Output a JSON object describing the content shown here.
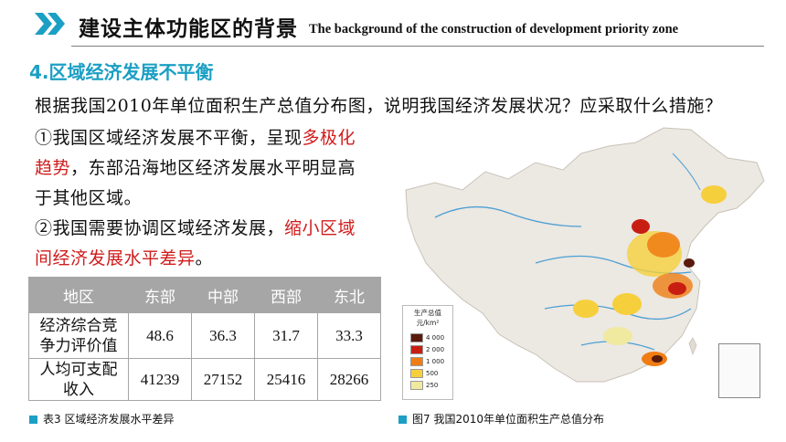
{
  "header": {
    "title_cn": "建设主体功能区的背景",
    "title_en": "The background of the construction of development priority zone"
  },
  "section_title": "4.区域经济发展不平衡",
  "question": "根据我国2010年单位面积生产总值分布图，说明我国经济发展状况？应采取什么措施？",
  "answer1": {
    "line1_pre": "①我国区域经济发展不平衡，呈现",
    "line1_red": "多极化",
    "line2_red": "趋势",
    "line2_post": "，东部沿海地区经济发展水平明显高",
    "line3": "于其他区域。"
  },
  "answer2": {
    "line1_pre": "②我国需要协调区域经济发展，",
    "line1_red": "缩小区域",
    "line2_red": "间经济发展水平差异",
    "line2_post": "。"
  },
  "table": {
    "headers": [
      "地区",
      "东部",
      "中部",
      "西部",
      "东北"
    ],
    "rows": [
      {
        "label_l1": "经济综合竞",
        "label_l2": "争力评价值",
        "values": [
          "48.6",
          "36.3",
          "31.7",
          "33.3"
        ]
      },
      {
        "label_l1": "人均可支配",
        "label_l2": "收入",
        "values": [
          "41239",
          "27152",
          "25416",
          "28266"
        ]
      }
    ]
  },
  "captions": {
    "table": "表3 区域经济发展水平差异",
    "map": "图7 我国2010年单位面积生产总值分布"
  },
  "legend": {
    "title": "生产总值",
    "unit": "元/km²",
    "items": [
      {
        "label": "4 000",
        "color": "#5a1a0c"
      },
      {
        "label": "2 000",
        "color": "#c81e12"
      },
      {
        "label": "1 000",
        "color": "#ef7d14"
      },
      {
        "label": "500",
        "color": "#f6cf3c"
      },
      {
        "label": "250",
        "color": "#efeaa0"
      }
    ]
  },
  "colors": {
    "accent": "#1b9fc4",
    "highlight": "#d01c1c",
    "table_header": "#a6a6a6"
  }
}
